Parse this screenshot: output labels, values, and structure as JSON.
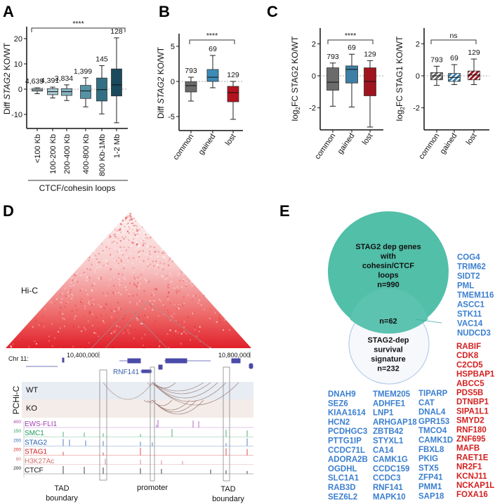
{
  "panels": {
    "a": "A",
    "b": "B",
    "c": "C",
    "d": "D",
    "e": "E"
  },
  "chart_data": [
    {
      "type": "box",
      "id": "A",
      "ylabel": {
        "prefix": "Diff ",
        "gene": "STAG2",
        "suffix": " KO/WT"
      },
      "xlabel": "CTCF/cohesin loops",
      "yticks": [
        20,
        10,
        0,
        -10
      ],
      "ylim": [
        -15,
        25
      ],
      "significance": "****",
      "colors": [
        "#cfe1e7",
        "#a9c9d3",
        "#86b2c1",
        "#5592a6",
        "#336f84",
        "#1b4a5c"
      ],
      "categories": [
        "<100 Kb",
        "100-200 Kb",
        "200-400 Kb",
        "400-800 Kb",
        "800 Kb-1Mb",
        "1-2 Mb"
      ],
      "n": [
        "4,639",
        "4,391",
        "3,834",
        "1,399",
        "145",
        "128"
      ],
      "boxes": [
        {
          "min": -1.8,
          "q1": -0.8,
          "median": -0.3,
          "q3": 0.3,
          "max": 0.5
        },
        {
          "min": -3.5,
          "q1": -2.2,
          "median": -1.0,
          "q3": 0.2,
          "max": 0.8
        },
        {
          "min": -4.5,
          "q1": -2.5,
          "median": -1.0,
          "q3": 0.2,
          "max": 1.7
        },
        {
          "min": -7.0,
          "q1": -3.7,
          "median": -0.7,
          "q3": 1.5,
          "max": 4.5
        },
        {
          "min": -9.8,
          "q1": -4.7,
          "median": -0.2,
          "q3": 4.4,
          "max": 9.3
        },
        {
          "min": -13.3,
          "q1": -2.7,
          "median": 1.7,
          "q3": 8.0,
          "max": 20.3
        }
      ]
    },
    {
      "type": "box",
      "id": "B",
      "ylabel": {
        "prefix": "Diff ",
        "gene": "STAG2",
        "suffix": " KO/WT"
      },
      "yticks": [
        5,
        0,
        -5
      ],
      "ylim": [
        -7,
        6
      ],
      "significance": "****",
      "colors": [
        "#6b6b6b",
        "#3d8bb8",
        "#b3131f"
      ],
      "categories": [
        "common",
        "gained",
        "lost"
      ],
      "n": [
        "793",
        "69",
        "129"
      ],
      "boxes": [
        {
          "min": -2.8,
          "q1": -1.5,
          "median": -0.6,
          "q3": -0.05,
          "max": 0.6
        },
        {
          "min": -0.9,
          "q1": 0.0,
          "median": 0.6,
          "q3": 1.7,
          "max": 3.7
        },
        {
          "min": -5.4,
          "q1": -2.9,
          "median": -1.6,
          "q3": -0.7,
          "max": 0.0
        }
      ]
    },
    {
      "type": "box",
      "id": "C-STAG2",
      "ylabel": {
        "prefix": "log",
        "sub": "2",
        "suffix": "FC STAG2 KO/WT"
      },
      "yticks": [
        2,
        0,
        -2
      ],
      "ylim": [
        -3.4,
        2.8
      ],
      "significance": "****",
      "colors": [
        "#6b6b6b",
        "#3d7fa6",
        "#a0141f"
      ],
      "categories": [
        "common",
        "gained",
        "lost"
      ],
      "n": [
        "793",
        "69",
        "129"
      ],
      "boxes": [
        {
          "min": -1.9,
          "q1": -0.9,
          "median": -0.4,
          "q3": 0.5,
          "max": 0.8
        },
        {
          "min": -1.95,
          "q1": -0.45,
          "median": 0.4,
          "q3": 0.62,
          "max": 1.35
        },
        {
          "min": -3.2,
          "q1": -1.25,
          "median": -0.35,
          "q3": 0.5,
          "max": 0.95
        }
      ]
    },
    {
      "type": "box",
      "id": "C-STAG1",
      "ylabel": {
        "prefix": "log",
        "sub": "2",
        "suffix": "FC STAG1 KO/WT"
      },
      "yticks": [
        2,
        0,
        -2
      ],
      "ylim": [
        -3.4,
        2.8
      ],
      "significance": "ns",
      "hatched": true,
      "colors": [
        "#6b6b6b",
        "#3d7fa6",
        "#a0141f"
      ],
      "categories": [
        "common",
        "gained",
        "lost"
      ],
      "n": [
        "793",
        "69",
        "129"
      ],
      "boxes": [
        {
          "min": -0.6,
          "q1": -0.25,
          "median": 0.0,
          "q3": 0.2,
          "max": 0.6
        },
        {
          "min": -0.55,
          "q1": -0.35,
          "median": -0.1,
          "q3": 0.15,
          "max": 0.7
        },
        {
          "min": -0.55,
          "q1": -0.25,
          "median": 0.05,
          "q3": 0.3,
          "max": 1.05
        }
      ]
    }
  ],
  "panel_d": {
    "hic_label": "Hi-C",
    "chr_label": "Chr 11:",
    "coord1": "10,400,000",
    "coord2": "10,800,000",
    "gene_label": "RNF141",
    "pchic_label": "PCHi-C",
    "wt": "WT",
    "ko": "KO",
    "tracks": [
      {
        "name": "EWS-FLI1",
        "scale": "400",
        "color": "#a040b0"
      },
      {
        "name": "SMC1",
        "scale": "150",
        "color": "#1f9a5a"
      },
      {
        "name": "STAG2",
        "scale": "200",
        "color": "#2560b0"
      },
      {
        "name": "STAG1",
        "scale": "200",
        "color": "#d42020"
      },
      {
        "name": "H3K27Ac",
        "scale": "80",
        "color": "#d07070"
      },
      {
        "name": "CTCF",
        "scale": "200",
        "color": "#111111"
      }
    ],
    "annot": {
      "tad1_a": "TAD",
      "tad1_b": "boundary",
      "promoter": "promoter",
      "tad2_a": "TAD",
      "tad2_b": "boundary"
    }
  },
  "panel_e": {
    "big_circle": [
      "STAG2 dep genes",
      "with",
      "cohesin/CTCF",
      "loops",
      "n=990"
    ],
    "overlap": "n=62",
    "small_circle": [
      "STAG2-dep",
      "survival",
      "signature",
      "n=232"
    ],
    "colors": {
      "big": "#52bfa8",
      "small": "#eef3fa",
      "blue": "#3b7fd0",
      "red": "#d42020"
    },
    "blue_right": [
      "COG4",
      "TRIM62",
      "SIDT2",
      "PML",
      "TMEM116",
      "ASCC1",
      "STK11",
      "VAC14",
      "NUDCD3"
    ],
    "red_right": [
      "RABIF",
      "CDK8",
      "C2CD5",
      "HSPBAP1",
      "ABCC5",
      "PDS5B",
      "DTNBP1",
      "SIPA1L1",
      "SMYD2",
      "RNF180",
      "ZNF695",
      "MAFB",
      "RAET1E",
      "NR2F1",
      "KCNJ11",
      "NCKAP1L",
      "FOXA16"
    ],
    "blue_col1": [
      "DNAH9",
      "SEZ6",
      "KIAA1614",
      "HCN2",
      "PCDHGC3",
      "PTTG1IP",
      "CCDC71L",
      "ADORA2B",
      "OGDHL",
      "SLC1A1",
      "RAB3D",
      "SEZ6L2"
    ],
    "blue_col2": [
      "TMEM205",
      "ADHFE1",
      "LNP1",
      "ARHGAP18",
      "ZBTB42",
      "STYXL1",
      "CA14",
      "CAMK1G",
      "CCDC159",
      "CCDC3",
      "RNF141",
      "MAPK10"
    ],
    "blue_col3": [
      "TIPARP",
      "CAT",
      "DNAL4",
      "GPR153",
      "TMCO4",
      "CAMK1D",
      "FBXL8",
      "PKIG",
      "STX5",
      "ZFP41",
      "PMM1",
      "SAP18"
    ]
  }
}
